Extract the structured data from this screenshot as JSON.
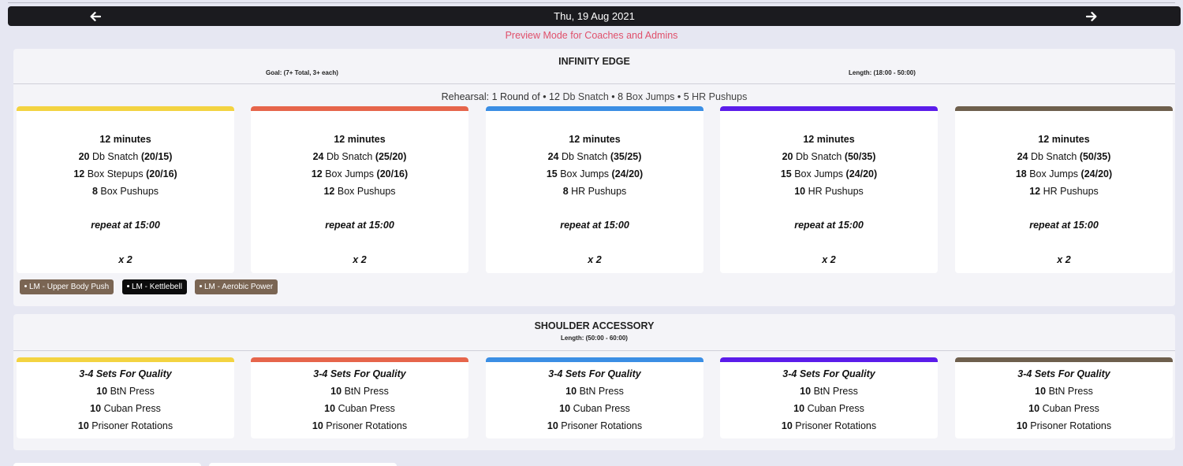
{
  "header": {
    "date": "Thu, 19 Aug 2021",
    "prev_icon": "arrow-left-icon",
    "next_icon": "arrow-right-icon"
  },
  "preview_text": "Preview Mode for Coaches and Admins",
  "colors": {
    "yellow": "#f3d341",
    "orange": "#e6654b",
    "blue": "#3b8ee4",
    "purple": "#5b1cea",
    "brown": "#6e5f4d",
    "preview": "#e0506b",
    "tag_brown": "#7a6553",
    "tag_black": "#0c0c0c"
  },
  "sections": [
    {
      "title": "INFINITY EDGE",
      "goal": "Goal: (7+ Total, 3+ each)",
      "length": "Length: (18:00 - 50:00)",
      "rehearsal": {
        "prefix": "Rehearsal: 1 Round of • 12 ",
        "a": "Db Snatch",
        "mid1": " • 8 ",
        "b": "Box Jumps",
        "mid2": " • 5 ",
        "c": "HR Pushups"
      },
      "cards": [
        {
          "time": "12 minutes",
          "ex1_n": "20",
          "ex1_name": "Db Snatch",
          "ex1_w": "(20/15)",
          "ex2_n": "12",
          "ex2_name": "Box Stepups",
          "ex2_w": "(20/16)",
          "ex3_n": "8",
          "ex3_name": "Box Pushups",
          "repeat": "repeat at 15:00",
          "mult": "x 2"
        },
        {
          "time": "12 minutes",
          "ex1_n": "24",
          "ex1_name": "Db Snatch",
          "ex1_w": "(25/20)",
          "ex2_n": "12",
          "ex2_name": "Box Jumps",
          "ex2_w": "(20/16)",
          "ex3_n": "12",
          "ex3_name": "Box Pushups",
          "repeat": "repeat at 15:00",
          "mult": "x 2"
        },
        {
          "time": "12 minutes",
          "ex1_n": "24",
          "ex1_name": "Db Snatch",
          "ex1_w": "(35/25)",
          "ex2_n": "15",
          "ex2_name": "Box Jumps",
          "ex2_w": "(24/20)",
          "ex3_n": "8",
          "ex3_name": "HR Pushups",
          "repeat": "repeat at 15:00",
          "mult": "x 2"
        },
        {
          "time": "12 minutes",
          "ex1_n": "20",
          "ex1_name": "Db Snatch",
          "ex1_w": "(50/35)",
          "ex2_n": "15",
          "ex2_name": "Box Jumps",
          "ex2_w": "(24/20)",
          "ex3_n": "10",
          "ex3_name": "HR Pushups",
          "repeat": "repeat at 15:00",
          "mult": "x 2"
        },
        {
          "time": "12 minutes",
          "ex1_n": "24",
          "ex1_name": "Db Snatch",
          "ex1_w": "(50/35)",
          "ex2_n": "18",
          "ex2_name": "Box Jumps",
          "ex2_w": "(24/20)",
          "ex3_n": "12",
          "ex3_name": "HR Pushups",
          "repeat": "repeat at 15:00",
          "mult": "x 2"
        }
      ],
      "tags": [
        "LM - Upper Body Push",
        "LM - Kettlebell",
        "LM - Aerobic Power"
      ]
    },
    {
      "title": "SHOULDER ACCESSORY",
      "length": "Length: (50:00 - 60:00)",
      "cards": [
        {
          "head": "3-4 Sets For Quality",
          "a_n": "10",
          "a": "BtN Press",
          "b_n": "10",
          "b": "Cuban Press",
          "c_n": "10",
          "c": "Prisoner Rotations"
        },
        {
          "head": "3-4 Sets For Quality",
          "a_n": "10",
          "a": "BtN Press",
          "b_n": "10",
          "b": "Cuban Press",
          "c_n": "10",
          "c": "Prisoner Rotations"
        },
        {
          "head": "3-4 Sets For Quality",
          "a_n": "10",
          "a": "BtN Press",
          "b_n": "10",
          "b": "Cuban Press",
          "c_n": "10",
          "c": "Prisoner Rotations"
        },
        {
          "head": "3-4 Sets For Quality",
          "a_n": "10",
          "a": "BtN Press",
          "b_n": "10",
          "b": "Cuban Press",
          "c_n": "10",
          "c": "Prisoner Rotations"
        },
        {
          "head": "3-4 Sets For Quality",
          "a_n": "10",
          "a": "BtN Press",
          "b_n": "10",
          "b": "Cuban Press",
          "c_n": "10",
          "c": "Prisoner Rotations"
        }
      ]
    }
  ]
}
